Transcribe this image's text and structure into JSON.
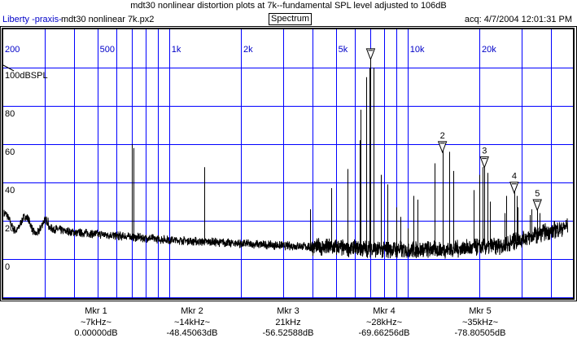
{
  "header": {
    "title": "mdt30 nonlinear distortion plots at 7k--fundamental SPL level adjusted to 106dB",
    "brand": "Liberty -praxis-",
    "file": "mdt30 nonlinear 7k.px2",
    "mode_button": "Spectrum",
    "acq": "acq: 4/7/2004 12:01:31 PM"
  },
  "colors": {
    "grid": "#0000ff",
    "trace": "#000000",
    "axis_text": "#0000c8"
  },
  "chart_data": {
    "type": "line",
    "title": "mdt30 nonlinear distortion plots at 7k--fundamental SPL level adjusted to 106dB",
    "xscale": "log",
    "xlim": [
      200,
      50000
    ],
    "ylim": [
      -20,
      120
    ],
    "ylabel": "100dBSPL",
    "x_tick_labels": [
      {
        "f": 200,
        "label": "200"
      },
      {
        "f": 500,
        "label": "500"
      },
      {
        "f": 1000,
        "label": "1k"
      },
      {
        "f": 2000,
        "label": "2k"
      },
      {
        "f": 5000,
        "label": "5k"
      },
      {
        "f": 10000,
        "label": "10k"
      },
      {
        "f": 20000,
        "label": "20k"
      }
    ],
    "x_gridlines": [
      300,
      400,
      500,
      600,
      700,
      800,
      900,
      1000,
      2000,
      3000,
      4000,
      5000,
      6000,
      7000,
      8000,
      9000,
      10000,
      20000,
      30000,
      40000
    ],
    "y_tick_labels": [
      {
        "v": 100,
        "label": "100dBSPL"
      },
      {
        "v": 80,
        "label": "80"
      },
      {
        "v": 60,
        "label": "60"
      },
      {
        "v": 40,
        "label": "40"
      },
      {
        "v": 20,
        "label": "20"
      },
      {
        "v": 0,
        "label": "0"
      }
    ],
    "y_gridlines": [
      100,
      80,
      60,
      40,
      20,
      0,
      -20
    ],
    "grid": true,
    "noise_floor": [
      [
        200,
        20
      ],
      [
        400,
        14
      ],
      [
        1000,
        10
      ],
      [
        3000,
        7
      ],
      [
        8000,
        5
      ],
      [
        15000,
        5
      ],
      [
        25000,
        7
      ],
      [
        35000,
        13
      ],
      [
        50000,
        18
      ]
    ],
    "peaks": [
      [
        700,
        60
      ],
      [
        710,
        58
      ],
      [
        1400,
        48
      ],
      [
        3900,
        26
      ],
      [
        4800,
        37
      ],
      [
        5600,
        47
      ],
      [
        6300,
        62
      ],
      [
        6350,
        78
      ],
      [
        6700,
        95
      ],
      [
        6900,
        100
      ],
      [
        7000,
        106
      ],
      [
        7200,
        100
      ],
      [
        7700,
        44
      ],
      [
        8200,
        39
      ],
      [
        9000,
        27
      ],
      [
        9300,
        22
      ],
      [
        10000,
        16
      ],
      [
        10600,
        33
      ],
      [
        11000,
        31
      ],
      [
        13000,
        50
      ],
      [
        14000,
        58
      ],
      [
        15000,
        56
      ],
      [
        15600,
        46
      ],
      [
        19000,
        36
      ],
      [
        20000,
        44
      ],
      [
        20600,
        48
      ],
      [
        21000,
        51
      ],
      [
        21600,
        45
      ],
      [
        22200,
        30
      ],
      [
        25500,
        24
      ],
      [
        26000,
        33
      ],
      [
        28000,
        37
      ],
      [
        28600,
        33
      ],
      [
        29000,
        27
      ],
      [
        32500,
        23
      ],
      [
        33000,
        26
      ],
      [
        35000,
        27
      ],
      [
        35800,
        24
      ]
    ],
    "markers": [
      {
        "id": "1",
        "label": "Mkr 1",
        "freq_label": "~7kHz~",
        "freq": 7000,
        "value": "0.00000dB",
        "level": 106
      },
      {
        "id": "2",
        "label": "Mkr 2",
        "freq_label": "~14kHz~",
        "freq": 14000,
        "value": "-48.45063dB",
        "level": 57.5
      },
      {
        "id": "3",
        "label": "Mkr 3",
        "freq_label": "21kHz",
        "freq": 21000,
        "value": "-56.52588dB",
        "level": 49.5
      },
      {
        "id": "4",
        "label": "Mkr 4",
        "freq_label": "~28kHz~",
        "freq": 28000,
        "value": "-69.66256dB",
        "level": 36.3
      },
      {
        "id": "5",
        "label": "Mkr 5",
        "freq_label": "~35kHz~",
        "freq": 35000,
        "value": "-78.80505dB",
        "level": 27.2
      }
    ]
  }
}
